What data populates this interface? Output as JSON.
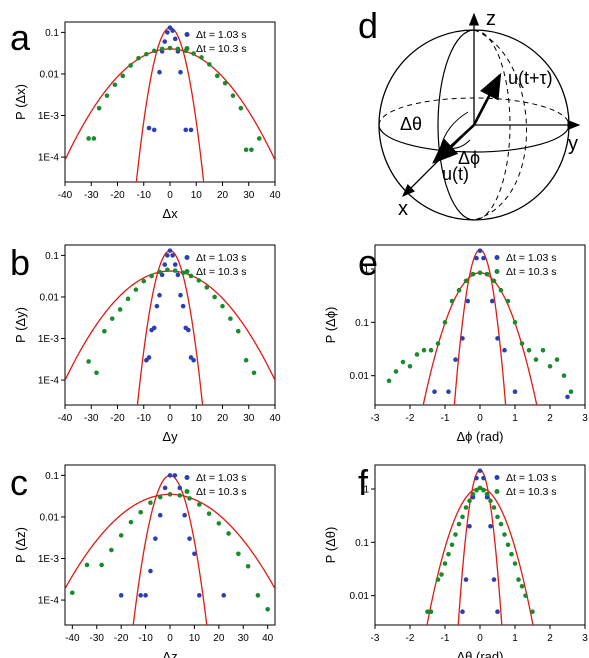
{
  "panel_labels": {
    "a": "a",
    "b": "b",
    "c": "c",
    "d": "d",
    "e": "e",
    "f": "f"
  },
  "colors": {
    "series_1": "#2b3fb5",
    "series_2": "#1a8a2e",
    "fit": "#e01b12"
  },
  "legend": {
    "series_1": "Δt = 1.03 s",
    "series_2": "Δt = 10.3 s"
  },
  "diagram": {
    "axis_z": "z",
    "axis_y": "y",
    "axis_x": "x",
    "vec_end": "u(t+τ)",
    "vec_start": "u(t)",
    "angle_theta": "Δθ",
    "angle_phi": "Δϕ"
  },
  "chart_data": [
    {
      "id": "a",
      "type": "scatter",
      "xlabel": "Δx",
      "ylabel": "P (Δx)",
      "xlim": [
        -40,
        40
      ],
      "ylim_log10": [
        -4.6,
        -0.75
      ],
      "yscale": "log",
      "xticks": [
        -40,
        -30,
        -20,
        -10,
        0,
        10,
        20,
        30,
        40
      ],
      "yticks": [
        {
          "v": 0.1,
          "label": "0.1"
        },
        {
          "v": 0.01,
          "label": "0.01"
        },
        {
          "v": 0.001,
          "label": "1E-3"
        },
        {
          "v": 0.0001,
          "label": "1E-4"
        }
      ],
      "series": [
        {
          "name": "Δt = 1.03 s",
          "x": [
            -8,
            -6,
            -4,
            -3,
            -2,
            -1,
            0,
            1,
            2,
            3,
            4,
            6,
            8
          ],
          "y": [
            0.0005,
            0.00045,
            0.011,
            0.035,
            0.06,
            0.1,
            0.13,
            0.11,
            0.07,
            0.035,
            0.011,
            0.00045,
            0.00045
          ]
        },
        {
          "name": "Δt = 10.3 s",
          "x": [
            -31,
            -29,
            -27,
            -24,
            -21,
            -18,
            -15,
            -12,
            -9,
            -6,
            -3,
            0,
            3,
            6,
            9,
            12,
            15,
            18,
            21,
            24,
            27,
            29,
            31,
            34
          ],
          "y": [
            0.00028,
            0.00028,
            0.0015,
            0.003,
            0.0055,
            0.009,
            0.016,
            0.024,
            0.03,
            0.036,
            0.04,
            0.042,
            0.04,
            0.036,
            0.031,
            0.025,
            0.017,
            0.009,
            0.006,
            0.003,
            0.0015,
            0.00015,
            0.00015,
            0.00028
          ]
        }
      ],
      "fits": [
        {
          "amp": 0.13,
          "sigma": 3.1
        },
        {
          "amp": 0.04,
          "sigma": 11.4
        }
      ]
    },
    {
      "id": "b",
      "type": "scatter",
      "xlabel": "Δy",
      "ylabel": "P (Δy)",
      "xlim": [
        -40,
        40
      ],
      "ylim_log10": [
        -4.6,
        -0.75
      ],
      "yscale": "log",
      "xticks": [
        -40,
        -30,
        -20,
        -10,
        0,
        10,
        20,
        30,
        40
      ],
      "yticks": [
        {
          "v": 0.1,
          "label": "0.1"
        },
        {
          "v": 0.01,
          "label": "0.01"
        },
        {
          "v": 0.001,
          "label": "1E-3"
        },
        {
          "v": 0.0001,
          "label": "1E-4"
        }
      ],
      "series": [
        {
          "name": "Δt = 1.03 s",
          "x": [
            -9,
            -8,
            -7,
            -6,
            -5,
            -4,
            -3,
            -2,
            -1,
            0,
            1,
            2,
            3,
            4,
            5,
            6,
            7,
            8,
            9
          ],
          "y": [
            0.0003,
            0.00035,
            0.0016,
            0.0018,
            0.006,
            0.011,
            0.034,
            0.06,
            0.1,
            0.13,
            0.1,
            0.06,
            0.034,
            0.011,
            0.006,
            0.0018,
            0.0016,
            0.00035,
            0.0003
          ]
        },
        {
          "name": "Δt = 10.3 s",
          "x": [
            -31,
            -28,
            -25,
            -22,
            -19,
            -16,
            -13,
            -10,
            -7,
            -4,
            -1,
            2,
            5,
            8,
            11,
            14,
            17,
            20,
            23,
            26,
            29,
            32
          ],
          "y": [
            0.00028,
            0.00015,
            0.0015,
            0.003,
            0.005,
            0.009,
            0.015,
            0.024,
            0.032,
            0.04,
            0.045,
            0.043,
            0.038,
            0.032,
            0.025,
            0.017,
            0.01,
            0.006,
            0.003,
            0.0015,
            0.0003,
            0.00015
          ]
        }
      ],
      "fits": [
        {
          "amp": 0.13,
          "sigma": 3.0
        },
        {
          "amp": 0.042,
          "sigma": 11.5
        }
      ]
    },
    {
      "id": "c",
      "type": "scatter",
      "xlabel": "Δz",
      "ylabel": "P (Δz)",
      "xlim": [
        -43,
        43
      ],
      "ylim_log10": [
        -4.6,
        -0.75
      ],
      "yscale": "log",
      "xticks": [
        -40,
        -30,
        -20,
        -10,
        0,
        10,
        20,
        30,
        40
      ],
      "yticks": [
        {
          "v": 0.1,
          "label": "0.1"
        },
        {
          "v": 0.01,
          "label": "0.01"
        },
        {
          "v": 0.001,
          "label": "1E-3"
        },
        {
          "v": 0.0001,
          "label": "1E-4"
        }
      ],
      "series": [
        {
          "name": "Δt = 1.03 s",
          "x": [
            -20,
            -12,
            -10,
            -8,
            -6,
            -4,
            -2,
            0,
            2,
            4,
            6,
            8,
            10,
            12,
            22
          ],
          "y": [
            0.00013,
            0.00013,
            0.00013,
            0.0005,
            0.003,
            0.011,
            0.05,
            0.1,
            0.1,
            0.05,
            0.011,
            0.003,
            0.0013,
            0.00013,
            0.00013
          ]
        },
        {
          "name": "Δt = 10.3 s",
          "x": [
            -40,
            -34,
            -28,
            -24,
            -20,
            -16,
            -12,
            -8,
            -4,
            0,
            4,
            8,
            12,
            16,
            20,
            24,
            28,
            32,
            36,
            40
          ],
          "y": [
            0.00015,
            0.0007,
            0.0007,
            0.0016,
            0.0036,
            0.0075,
            0.013,
            0.022,
            0.03,
            0.035,
            0.033,
            0.028,
            0.02,
            0.012,
            0.007,
            0.004,
            0.0013,
            0.00065,
            0.00013,
            6e-05
          ]
        }
      ],
      "fits": [
        {
          "amp": 0.1,
          "sigma": 3.7
        },
        {
          "amp": 0.035,
          "sigma": 13.3
        }
      ]
    },
    {
      "id": "e",
      "type": "scatter",
      "xlabel": "Δϕ (rad)",
      "ylabel": "P (Δϕ)",
      "xlim": [
        -3,
        3
      ],
      "ylim_log10": [
        -2.55,
        0.45
      ],
      "yscale": "log",
      "xticks": [
        -3,
        -2,
        -1,
        0,
        1,
        2,
        3
      ],
      "yticks": [
        {
          "v": 1,
          "label": "1"
        },
        {
          "v": 0.1,
          "label": "0.1"
        },
        {
          "v": 0.01,
          "label": "0.01"
        }
      ],
      "series": [
        {
          "name": "Δt = 1.03 s",
          "x": [
            -1.3,
            -0.9,
            -0.7,
            -0.5,
            -0.35,
            -0.2,
            -0.1,
            0,
            0.1,
            0.2,
            0.35,
            0.5,
            0.7,
            1.0,
            2.5
          ],
          "y": [
            0.005,
            0.005,
            0.02,
            0.05,
            0.25,
            0.8,
            1.6,
            2.2,
            1.6,
            0.8,
            0.25,
            0.05,
            0.03,
            0.005,
            0.004
          ]
        },
        {
          "name": "Δt = 10.3 s",
          "x": [
            -2.6,
            -2.4,
            -2.2,
            -2.0,
            -1.8,
            -1.6,
            -1.4,
            -1.2,
            -1.0,
            -0.8,
            -0.6,
            -0.4,
            -0.2,
            0,
            0.2,
            0.4,
            0.6,
            0.8,
            1.0,
            1.2,
            1.4,
            1.6,
            1.8,
            2.0,
            2.2,
            2.4,
            2.6
          ],
          "y": [
            0.008,
            0.012,
            0.018,
            0.015,
            0.025,
            0.03,
            0.03,
            0.04,
            0.1,
            0.25,
            0.4,
            0.6,
            0.8,
            0.85,
            0.8,
            0.6,
            0.4,
            0.25,
            0.1,
            0.04,
            0.03,
            0.02,
            0.03,
            0.015,
            0.02,
            0.01,
            0.005
          ]
        }
      ],
      "fits": [
        {
          "amp": 2.3,
          "sigma": 0.2
        },
        {
          "amp": 0.85,
          "sigma": 0.48
        }
      ]
    },
    {
      "id": "f",
      "type": "scatter",
      "xlabel": "Δθ (rad)",
      "ylabel": "P (Δθ)",
      "xlim": [
        -3,
        3
      ],
      "ylim_log10": [
        -2.55,
        0.45
      ],
      "yscale": "log",
      "xticks": [
        -3,
        -2,
        -1,
        0,
        1,
        2,
        3
      ],
      "yticks": [
        {
          "v": 1,
          "label": "1"
        },
        {
          "v": 0.1,
          "label": "0.1"
        },
        {
          "v": 0.01,
          "label": "0.01"
        }
      ],
      "series": [
        {
          "name": "Δt = 1.03 s",
          "x": [
            -0.5,
            -0.4,
            -0.3,
            -0.2,
            -0.1,
            0,
            0.1,
            0.2,
            0.3,
            0.4,
            0.5
          ],
          "y": [
            0.005,
            0.02,
            0.2,
            0.7,
            1.6,
            2.2,
            1.6,
            0.7,
            0.2,
            0.02,
            0.005
          ]
        },
        {
          "name": "Δt = 10.3 s",
          "x": [
            -1.5,
            -1.4,
            -1.2,
            -1.1,
            -1.0,
            -0.9,
            -0.8,
            -0.7,
            -0.6,
            -0.5,
            -0.4,
            -0.3,
            -0.2,
            -0.1,
            0,
            0.1,
            0.2,
            0.3,
            0.4,
            0.5,
            0.6,
            0.7,
            0.8,
            0.9,
            1.0,
            1.1,
            1.2,
            1.3,
            1.5
          ],
          "y": [
            0.005,
            0.005,
            0.02,
            0.025,
            0.04,
            0.06,
            0.09,
            0.14,
            0.22,
            0.3,
            0.45,
            0.6,
            0.8,
            0.95,
            1.05,
            0.95,
            0.8,
            0.6,
            0.45,
            0.3,
            0.22,
            0.14,
            0.09,
            0.06,
            0.04,
            0.02,
            0.015,
            0.01,
            0.005
          ]
        }
      ],
      "fits": [
        {
          "amp": 2.3,
          "sigma": 0.17
        },
        {
          "amp": 1.05,
          "sigma": 0.44
        }
      ]
    }
  ]
}
